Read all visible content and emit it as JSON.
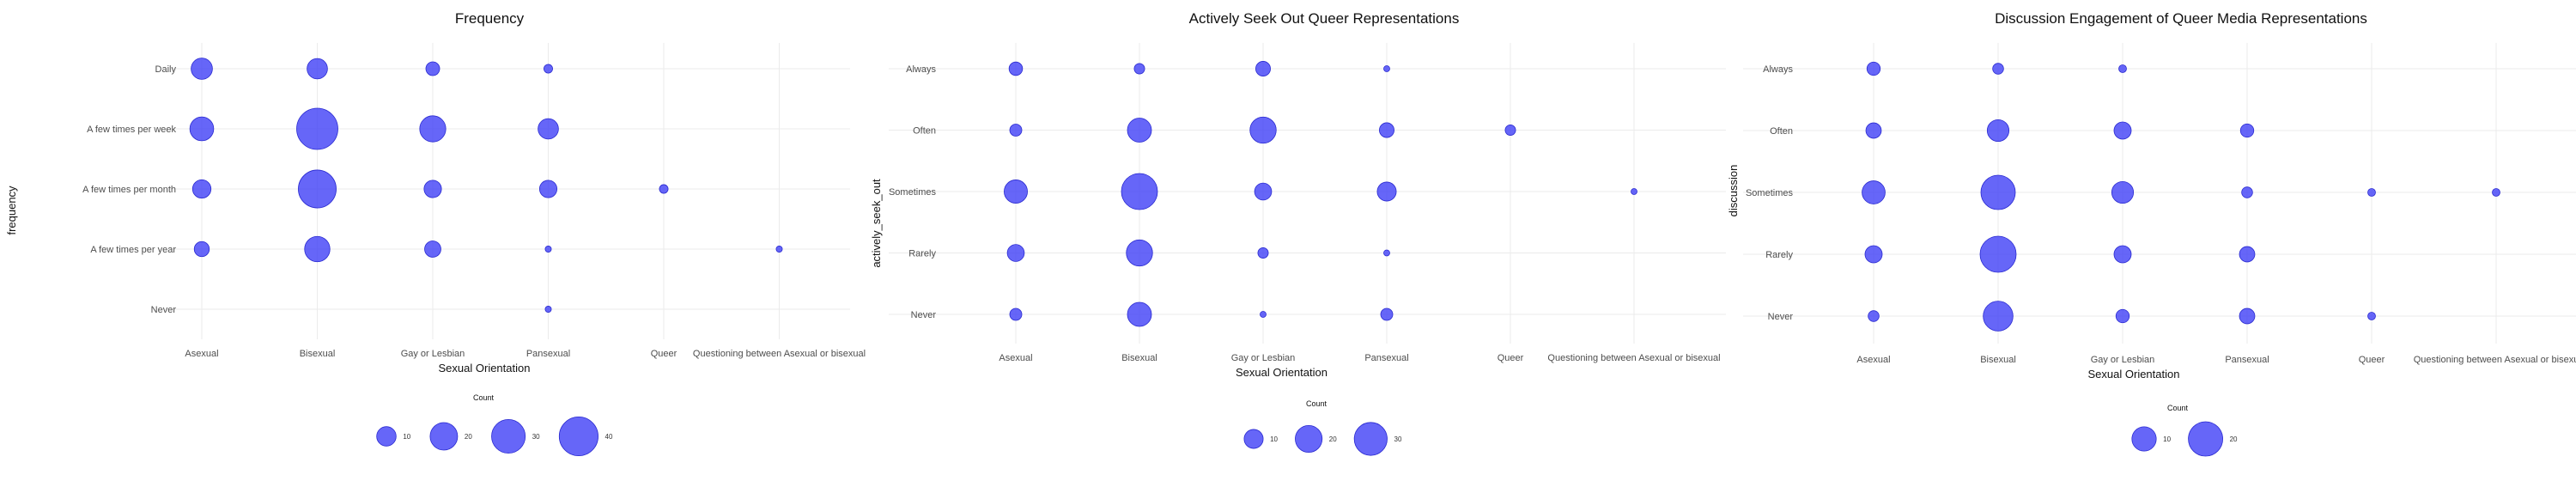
{
  "chart_data": [
    {
      "type": "scatter",
      "title": "Frequency",
      "xlabel": "Sexual Orientation",
      "ylabel": "frequency",
      "x_categories": [
        "Asexual",
        "Bisexual",
        "Gay or Lesbian",
        "Pansexual",
        "Queer",
        "Questioning between Asexual or bisexual"
      ],
      "x_tick_labels": [
        "Asexual",
        "Bisexual",
        "Gay or Lesbian",
        "Pansexual",
        "Queer",
        "Questioning between Asexual or bisexual"
      ],
      "y_categories": [
        "Daily",
        "A few times per week",
        "A few times per month",
        "A few times per year",
        "Never"
      ],
      "size_legend": {
        "title": "Count",
        "values": [
          10,
          20,
          30,
          40
        ]
      },
      "max_count": 45,
      "points": [
        {
          "x": "Asexual",
          "y": "Daily",
          "count": 12
        },
        {
          "x": "Bisexual",
          "y": "Daily",
          "count": 11
        },
        {
          "x": "Gay or Lesbian",
          "y": "Daily",
          "count": 5
        },
        {
          "x": "Pansexual",
          "y": "Daily",
          "count": 2
        },
        {
          "x": "Asexual",
          "y": "A few times per week",
          "count": 15
        },
        {
          "x": "Bisexual",
          "y": "A few times per week",
          "count": 45
        },
        {
          "x": "Gay or Lesbian",
          "y": "A few times per week",
          "count": 18
        },
        {
          "x": "Pansexual",
          "y": "A few times per week",
          "count": 11
        },
        {
          "x": "Asexual",
          "y": "A few times per month",
          "count": 9
        },
        {
          "x": "Bisexual",
          "y": "A few times per month",
          "count": 38
        },
        {
          "x": "Gay or Lesbian",
          "y": "A few times per month",
          "count": 8
        },
        {
          "x": "Pansexual",
          "y": "A few times per month",
          "count": 8
        },
        {
          "x": "Queer",
          "y": "A few times per month",
          "count": 2
        },
        {
          "x": "Asexual",
          "y": "A few times per year",
          "count": 6
        },
        {
          "x": "Bisexual",
          "y": "A few times per year",
          "count": 17
        },
        {
          "x": "Gay or Lesbian",
          "y": "A few times per year",
          "count": 7
        },
        {
          "x": "Pansexual",
          "y": "A few times per year",
          "count": 1
        },
        {
          "x": "Questioning between Asexual or bisexual",
          "y": "A few times per year",
          "count": 1
        },
        {
          "x": "Pansexual",
          "y": "Never",
          "count": 1
        }
      ]
    },
    {
      "type": "scatter",
      "title": "Actively Seek Out Queer Representations",
      "xlabel": "Sexual Orientation",
      "ylabel": "actively_seek_out",
      "x_categories": [
        "Asexual",
        "Bisexual",
        "Gay or Lesbian",
        "Pansexual",
        "Queer",
        "Questioning between Asexual or bisexual"
      ],
      "x_tick_labels": [
        "Asexual",
        "Bisexual",
        "Gay or Lesbian",
        "Pansexual",
        "Queer",
        "Questioning between Asexual or bisexual"
      ],
      "y_categories": [
        "Always",
        "Often",
        "Sometimes",
        "Rarely",
        "Never"
      ],
      "size_legend": {
        "title": "Count",
        "values": [
          10,
          20,
          30
        ]
      },
      "max_count": 36,
      "points": [
        {
          "x": "Asexual",
          "y": "Always",
          "count": 5
        },
        {
          "x": "Bisexual",
          "y": "Always",
          "count": 3
        },
        {
          "x": "Gay or Lesbian",
          "y": "Always",
          "count": 6
        },
        {
          "x": "Pansexual",
          "y": "Always",
          "count": 1
        },
        {
          "x": "Asexual",
          "y": "Often",
          "count": 4
        },
        {
          "x": "Bisexual",
          "y": "Often",
          "count": 16
        },
        {
          "x": "Gay or Lesbian",
          "y": "Often",
          "count": 19
        },
        {
          "x": "Pansexual",
          "y": "Often",
          "count": 6
        },
        {
          "x": "Queer",
          "y": "Often",
          "count": 3
        },
        {
          "x": "Asexual",
          "y": "Sometimes",
          "count": 15
        },
        {
          "x": "Bisexual",
          "y": "Sometimes",
          "count": 36
        },
        {
          "x": "Gay or Lesbian",
          "y": "Sometimes",
          "count": 8
        },
        {
          "x": "Pansexual",
          "y": "Sometimes",
          "count": 10
        },
        {
          "x": "Questioning between Asexual or bisexual",
          "y": "Sometimes",
          "count": 1
        },
        {
          "x": "Asexual",
          "y": "Rarely",
          "count": 8
        },
        {
          "x": "Bisexual",
          "y": "Rarely",
          "count": 19
        },
        {
          "x": "Gay or Lesbian",
          "y": "Rarely",
          "count": 3
        },
        {
          "x": "Pansexual",
          "y": "Rarely",
          "count": 1
        },
        {
          "x": "Asexual",
          "y": "Never",
          "count": 4
        },
        {
          "x": "Bisexual",
          "y": "Never",
          "count": 16
        },
        {
          "x": "Gay or Lesbian",
          "y": "Never",
          "count": 1
        },
        {
          "x": "Pansexual",
          "y": "Never",
          "count": 4
        }
      ]
    },
    {
      "type": "scatter",
      "title": "Discussion Engagement of Queer Media Representations",
      "xlabel": "Sexual Orientation",
      "ylabel": "discussion",
      "x_categories": [
        "Asexual",
        "Bisexual",
        "Gay or Lesbian",
        "Pansexual",
        "Queer",
        "Questioning between Asexual or bisexual"
      ],
      "x_tick_labels": [
        "Asexual",
        "Bisexual",
        "Gay or Lesbian",
        "Pansexual",
        "Queer",
        "Questioning between Asexual or bisexu"
      ],
      "y_categories": [
        "Always",
        "Often",
        "Sometimes",
        "Rarely",
        "Never"
      ],
      "size_legend": {
        "title": "Count",
        "values": [
          10,
          20
        ]
      },
      "max_count": 22,
      "points": [
        {
          "x": "Asexual",
          "y": "Always",
          "count": 3
        },
        {
          "x": "Bisexual",
          "y": "Always",
          "count": 2
        },
        {
          "x": "Gay or Lesbian",
          "y": "Always",
          "count": 1
        },
        {
          "x": "Asexual",
          "y": "Often",
          "count": 4
        },
        {
          "x": "Bisexual",
          "y": "Often",
          "count": 8
        },
        {
          "x": "Gay or Lesbian",
          "y": "Often",
          "count": 5
        },
        {
          "x": "Pansexual",
          "y": "Often",
          "count": 3
        },
        {
          "x": "Asexual",
          "y": "Sometimes",
          "count": 9
        },
        {
          "x": "Bisexual",
          "y": "Sometimes",
          "count": 20
        },
        {
          "x": "Gay or Lesbian",
          "y": "Sometimes",
          "count": 8
        },
        {
          "x": "Pansexual",
          "y": "Sometimes",
          "count": 2
        },
        {
          "x": "Queer",
          "y": "Sometimes",
          "count": 1
        },
        {
          "x": "Questioning between Asexual or bisexual",
          "y": "Sometimes",
          "count": 1
        },
        {
          "x": "Asexual",
          "y": "Rarely",
          "count": 5
        },
        {
          "x": "Bisexual",
          "y": "Rarely",
          "count": 22
        },
        {
          "x": "Gay or Lesbian",
          "y": "Rarely",
          "count": 5
        },
        {
          "x": "Pansexual",
          "y": "Rarely",
          "count": 4
        },
        {
          "x": "Asexual",
          "y": "Never",
          "count": 2
        },
        {
          "x": "Bisexual",
          "y": "Never",
          "count": 15
        },
        {
          "x": "Gay or Lesbian",
          "y": "Never",
          "count": 3
        },
        {
          "x": "Pansexual",
          "y": "Never",
          "count": 4
        },
        {
          "x": "Queer",
          "y": "Never",
          "count": 1
        }
      ]
    }
  ],
  "style": {
    "point_fill": "#3b3bf6",
    "point_opacity": 0.78,
    "point_stroke": "#2a2ad0",
    "grid_color": "#ebebeb",
    "background": "#ffffff"
  }
}
